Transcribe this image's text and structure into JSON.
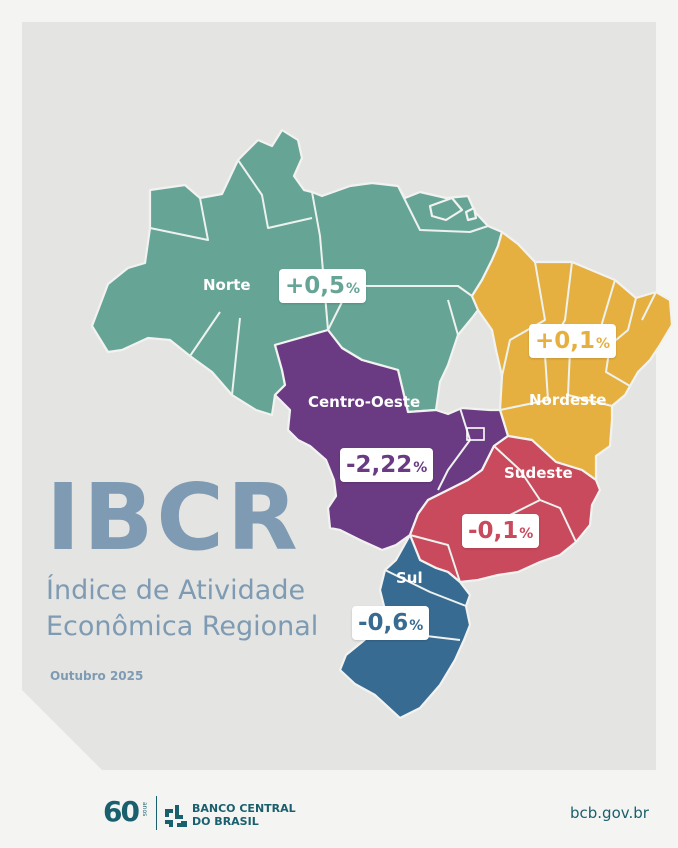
{
  "title": "IBCR",
  "subtitle_line1": "Índice de Atividade",
  "subtitle_line2": "Econômica Regional",
  "period": "Outubro 2025",
  "footer": {
    "anniversary": "60",
    "anniversary_suffix": "anos",
    "bank_line1": "BANCO CENTRAL",
    "bank_line2": "DO BRASIL",
    "website": "bcb.gov.br"
  },
  "regions": [
    {
      "id": "norte",
      "name": "Norte",
      "value": "+0,5",
      "unit": "%",
      "color": "#66a596"
    },
    {
      "id": "nordeste",
      "name": "Nordeste",
      "value": "+0,1",
      "unit": "%",
      "color": "#e6b040"
    },
    {
      "id": "centro-oeste",
      "name": "Centro-Oeste",
      "value": "-2,22",
      "unit": "%",
      "color": "#6a3b83"
    },
    {
      "id": "sudeste",
      "name": "Sudeste",
      "value": "-0,1",
      "unit": "%",
      "color": "#c84a5c"
    },
    {
      "id": "sul",
      "name": "Sul",
      "value": "-0,6",
      "unit": "%",
      "color": "#386b92"
    }
  ],
  "colors": {
    "title": "#7e9bb3",
    "footer": "#1a5f6d",
    "card_background": "#e4e4e2"
  }
}
